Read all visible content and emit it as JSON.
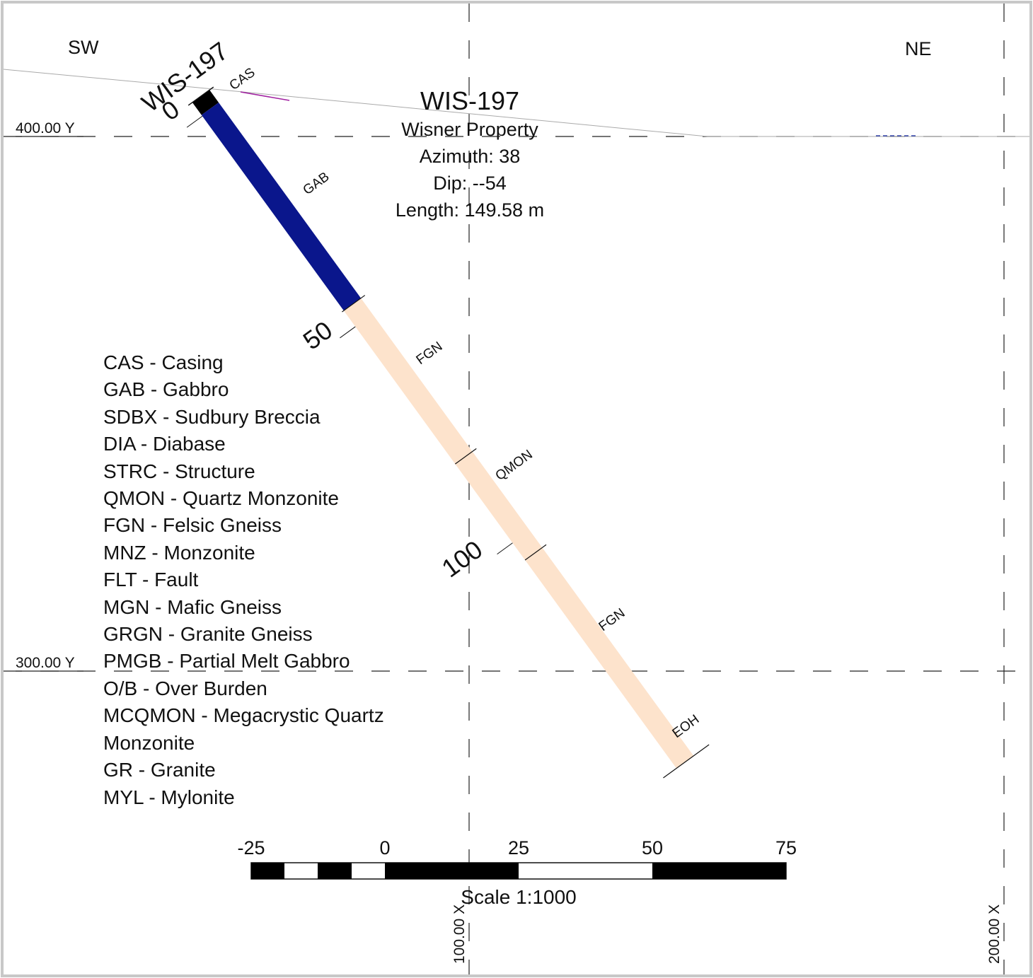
{
  "directions": {
    "left": "SW",
    "right": "NE"
  },
  "grid": {
    "y_labels": [
      "400.00 Y",
      "300.00 Y"
    ],
    "x_labels": [
      "100.00 X",
      "200.00 X"
    ]
  },
  "hole": {
    "collar_label": "WIS-197",
    "depth_labels": [
      "0",
      "50",
      "100"
    ],
    "end_label": "EOH",
    "intervals": [
      {
        "code": "CAS",
        "color": "#000000",
        "label_color": "#111111"
      },
      {
        "code": "GAB",
        "color": "#0a168c"
      },
      {
        "code": "FGN",
        "color": "#fde3cc"
      },
      {
        "code": "QMON",
        "color": "#fde3cc"
      },
      {
        "code": "FGN",
        "color": "#fde3cc"
      }
    ]
  },
  "info": {
    "title": "WIS-197",
    "property": "Wisner Property",
    "azimuth": "Azimuth: 38",
    "dip": "Dip: --54",
    "length": "Length: 149.58 m"
  },
  "legend": [
    "CAS - Casing",
    "GAB - Gabbro",
    "SDBX - Sudbury Breccia",
    "DIA - Diabase",
    "STRC - Structure",
    "QMON - Quartz Monzonite",
    "FGN - Felsic Gneiss",
    "MNZ - Monzonite",
    "FLT - Fault",
    "MGN - Mafic Gneiss",
    "GRGN - Granite Gneiss",
    "PMGB - Partial Melt Gabbro",
    "O/B - Over Burden",
    "MCQMON - Megacrystic Quartz Monzonite",
    "GR - Granite",
    "MYL - Mylonite"
  ],
  "scale": {
    "ticks": [
      "-25",
      "0",
      "25",
      "50",
      "75"
    ],
    "caption": "Scale 1:1000"
  }
}
